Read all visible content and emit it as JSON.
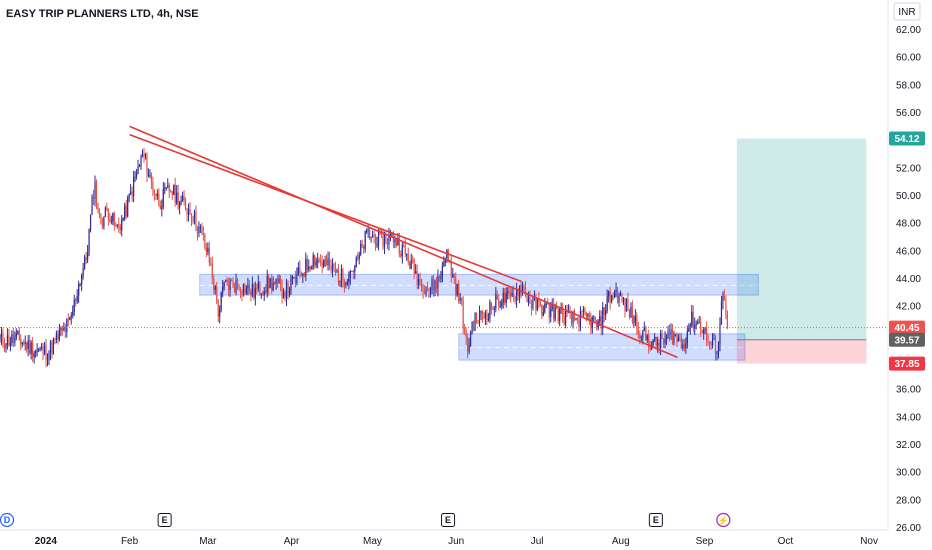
{
  "header": {
    "title": "EASY TRIP PLANNERS LTD, 4h, NSE"
  },
  "currency_button": {
    "label": "INR"
  },
  "colors": {
    "up": "#2f2a96",
    "down": "#e0534b",
    "trendline": "#e53935",
    "zone": "#2962ff",
    "target": "#26a69a",
    "stop": "#f23645",
    "price_line": "#ef5350",
    "entry_tag": "#616161"
  },
  "events": {
    "dividend_icon": "D",
    "earnings_icon": "E",
    "split_icon": "⚡"
  },
  "chart_data": {
    "type": "candlestick",
    "title": "EASY TRIP PLANNERS LTD, 4h, NSE",
    "currency": "INR",
    "ylim": [
      26,
      63
    ],
    "y_ticks": [
      "62.00",
      "60.00",
      "58.00",
      "56.00",
      "54.00",
      "52.00",
      "50.00",
      "48.00",
      "46.00",
      "44.00",
      "42.00",
      "40.00",
      "38.00",
      "36.00",
      "34.00",
      "32.00",
      "30.00",
      "28.00",
      "26.00"
    ],
    "x_labels": [
      "2024",
      "Feb",
      "Mar",
      "Apr",
      "May",
      "Jun",
      "Jul",
      "Aug",
      "Sep",
      "Oct",
      "Nov"
    ],
    "x_label_dates": [
      "2024-01-01",
      "2024-02-01",
      "2024-03-01",
      "2024-04-01",
      "2024-05-01",
      "2024-06-01",
      "2024-07-01",
      "2024-08-01",
      "2024-09-01",
      "2024-10-01",
      "2024-11-01"
    ],
    "x_start": "2023-12-15",
    "x_end": "2024-11-08",
    "price_path": [
      [
        "2023-12-15",
        39.5
      ],
      [
        "2023-12-22",
        39.6
      ],
      [
        "2023-12-28",
        38.8
      ],
      [
        "2024-01-02",
        38.7
      ],
      [
        "2024-01-06",
        39.9
      ],
      [
        "2024-01-10",
        40.8
      ],
      [
        "2024-01-13",
        43.5
      ],
      [
        "2024-01-16",
        45.5
      ],
      [
        "2024-01-19",
        51.0
      ],
      [
        "2024-01-21",
        48.0
      ],
      [
        "2024-01-24",
        49.0
      ],
      [
        "2024-01-27",
        47.5
      ],
      [
        "2024-01-30",
        48.5
      ],
      [
        "2024-02-03",
        51.2
      ],
      [
        "2024-02-06",
        53.0
      ],
      [
        "2024-02-09",
        51.0
      ],
      [
        "2024-02-12",
        49.5
      ],
      [
        "2024-02-16",
        50.5
      ],
      [
        "2024-02-20",
        49.5
      ],
      [
        "2024-02-24",
        48.8
      ],
      [
        "2024-02-28",
        47.0
      ],
      [
        "2024-03-02",
        45.0
      ],
      [
        "2024-03-05",
        41.5
      ],
      [
        "2024-03-07",
        43.5
      ],
      [
        "2024-03-12",
        43.6
      ],
      [
        "2024-03-18",
        43.0
      ],
      [
        "2024-03-24",
        43.7
      ],
      [
        "2024-03-30",
        43.1
      ],
      [
        "2024-04-04",
        44.3
      ],
      [
        "2024-04-09",
        45.5
      ],
      [
        "2024-04-14",
        45.0
      ],
      [
        "2024-04-20",
        44.0
      ],
      [
        "2024-04-25",
        45.0
      ],
      [
        "2024-04-29",
        47.2
      ],
      [
        "2024-05-04",
        46.8
      ],
      [
        "2024-05-09",
        47.0
      ],
      [
        "2024-05-14",
        45.5
      ],
      [
        "2024-05-18",
        44.0
      ],
      [
        "2024-05-22",
        43.2
      ],
      [
        "2024-05-26",
        44.0
      ],
      [
        "2024-05-28",
        46.0
      ],
      [
        "2024-05-31",
        44.0
      ],
      [
        "2024-06-03",
        42.0
      ],
      [
        "2024-06-05",
        38.6
      ],
      [
        "2024-06-07",
        40.8
      ],
      [
        "2024-06-12",
        41.5
      ],
      [
        "2024-06-17",
        42.5
      ],
      [
        "2024-06-21",
        42.5
      ],
      [
        "2024-06-25",
        43.5
      ],
      [
        "2024-06-29",
        42.2
      ],
      [
        "2024-07-04",
        41.8
      ],
      [
        "2024-07-09",
        41.5
      ],
      [
        "2024-07-14",
        41.0
      ],
      [
        "2024-07-19",
        41.2
      ],
      [
        "2024-07-24",
        40.5
      ],
      [
        "2024-07-27",
        42.5
      ],
      [
        "2024-07-30",
        43.0
      ],
      [
        "2024-08-03",
        42.0
      ],
      [
        "2024-08-06",
        41.0
      ],
      [
        "2024-08-09",
        40.0
      ],
      [
        "2024-08-13",
        39.2
      ],
      [
        "2024-08-17",
        39.5
      ],
      [
        "2024-08-20",
        40.0
      ],
      [
        "2024-08-24",
        39.2
      ],
      [
        "2024-08-27",
        41.0
      ],
      [
        "2024-08-31",
        40.6
      ],
      [
        "2024-09-03",
        39.2
      ],
      [
        "2024-09-06",
        39.0
      ],
      [
        "2024-09-08",
        43.5
      ],
      [
        "2024-09-09",
        41.8
      ],
      [
        "2024-09-10",
        40.45
      ]
    ],
    "last_price": {
      "label": "40.45",
      "value": 40.45
    },
    "trendlines": [
      {
        "from": [
          "2024-02-01",
          55.0
        ],
        "to": [
          "2024-08-22",
          38.3
        ]
      },
      {
        "from": [
          "2024-02-01",
          54.4
        ],
        "to": [
          "2024-06-25",
          43.8
        ]
      }
    ],
    "zones": [
      {
        "from": "2024-02-27",
        "to": "2024-09-21",
        "top": 44.3,
        "bottom": 42.8,
        "mid": 43.5
      },
      {
        "from": "2024-06-02",
        "to": "2024-09-16",
        "top": 40.0,
        "bottom": 38.1,
        "mid": 39.0
      }
    ],
    "position": {
      "from": "2024-09-13",
      "to": "2024-10-31",
      "target": {
        "label": "54.12",
        "value": 54.12
      },
      "entry": {
        "label": "39.57",
        "value": 39.57
      },
      "stop": {
        "label": "37.85",
        "value": 37.85
      }
    },
    "events": [
      {
        "type": "dividend",
        "date": "2023-12-22"
      },
      {
        "type": "earnings",
        "date": "2024-02-14"
      },
      {
        "type": "earnings",
        "date": "2024-05-29"
      },
      {
        "type": "earnings",
        "date": "2024-08-14"
      },
      {
        "type": "split",
        "date": "2024-09-08"
      }
    ]
  }
}
